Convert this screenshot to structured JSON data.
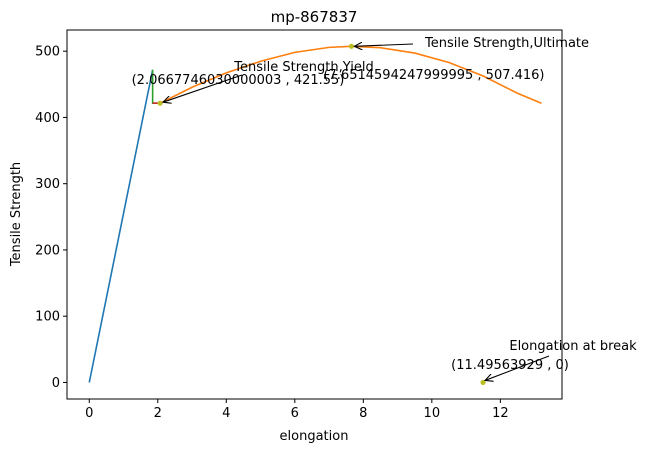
{
  "chart_data": {
    "type": "line",
    "title": "mp-867837",
    "xlabel": "elongation",
    "ylabel": "Tensile Strength",
    "xlim": [
      -0.65,
      13.8
    ],
    "ylim": [
      -25,
      532
    ],
    "xticks": [
      0,
      2,
      4,
      6,
      8,
      10,
      12
    ],
    "yticks": [
      0,
      100,
      200,
      300,
      400,
      500
    ],
    "grid": false,
    "series": [
      {
        "color": "#1f77b4",
        "x": [
          0,
          1.85
        ],
        "y": [
          0,
          472
        ]
      },
      {
        "color": "#2ca02c",
        "x": [
          1.85,
          1.85,
          2.07
        ],
        "y": [
          472,
          421.55,
          421.55
        ]
      },
      {
        "color": "#d62728",
        "x": [
          1.85,
          2.07
        ],
        "y": [
          421.55,
          421.55
        ]
      },
      {
        "color": "#ff7f0e",
        "x": [
          2.07,
          3.0,
          4.0,
          5.0,
          6.0,
          7.0,
          7.65,
          8.5,
          9.5,
          10.5,
          11.5,
          12.5,
          13.2
        ],
        "y": [
          421.55,
          445.6,
          467.3,
          484.8,
          498.2,
          505.8,
          507.4,
          505.3,
          497.2,
          483.0,
          462.5,
          436.5,
          421.5
        ]
      }
    ],
    "points": [
      {
        "x": 2.0667746030000003,
        "y": 421.55,
        "color": "#bcbd22"
      },
      {
        "x": 7.6514594248,
        "y": 507.416,
        "color": "#bcbd22"
      },
      {
        "x": 11.49563929,
        "y": 0,
        "color": "#bcbd22"
      }
    ],
    "annotations": [
      {
        "name": "yield",
        "label": "Tensile Strength,Yield",
        "coord_label": "(2.0667746030000003 , 421.55)",
        "x": 2.0667746030000003,
        "y": 421.55
      },
      {
        "name": "ultimate",
        "label": "Tensile Strength,Ultimate",
        "coord_label": "(7.6514594247999995 , 507.416)",
        "x": 7.6514594248,
        "y": 507.416
      },
      {
        "name": "break",
        "label": "Elongation at break",
        "coord_label": "(11.49563929 , 0)",
        "x": 11.49563929,
        "y": 0
      }
    ]
  }
}
